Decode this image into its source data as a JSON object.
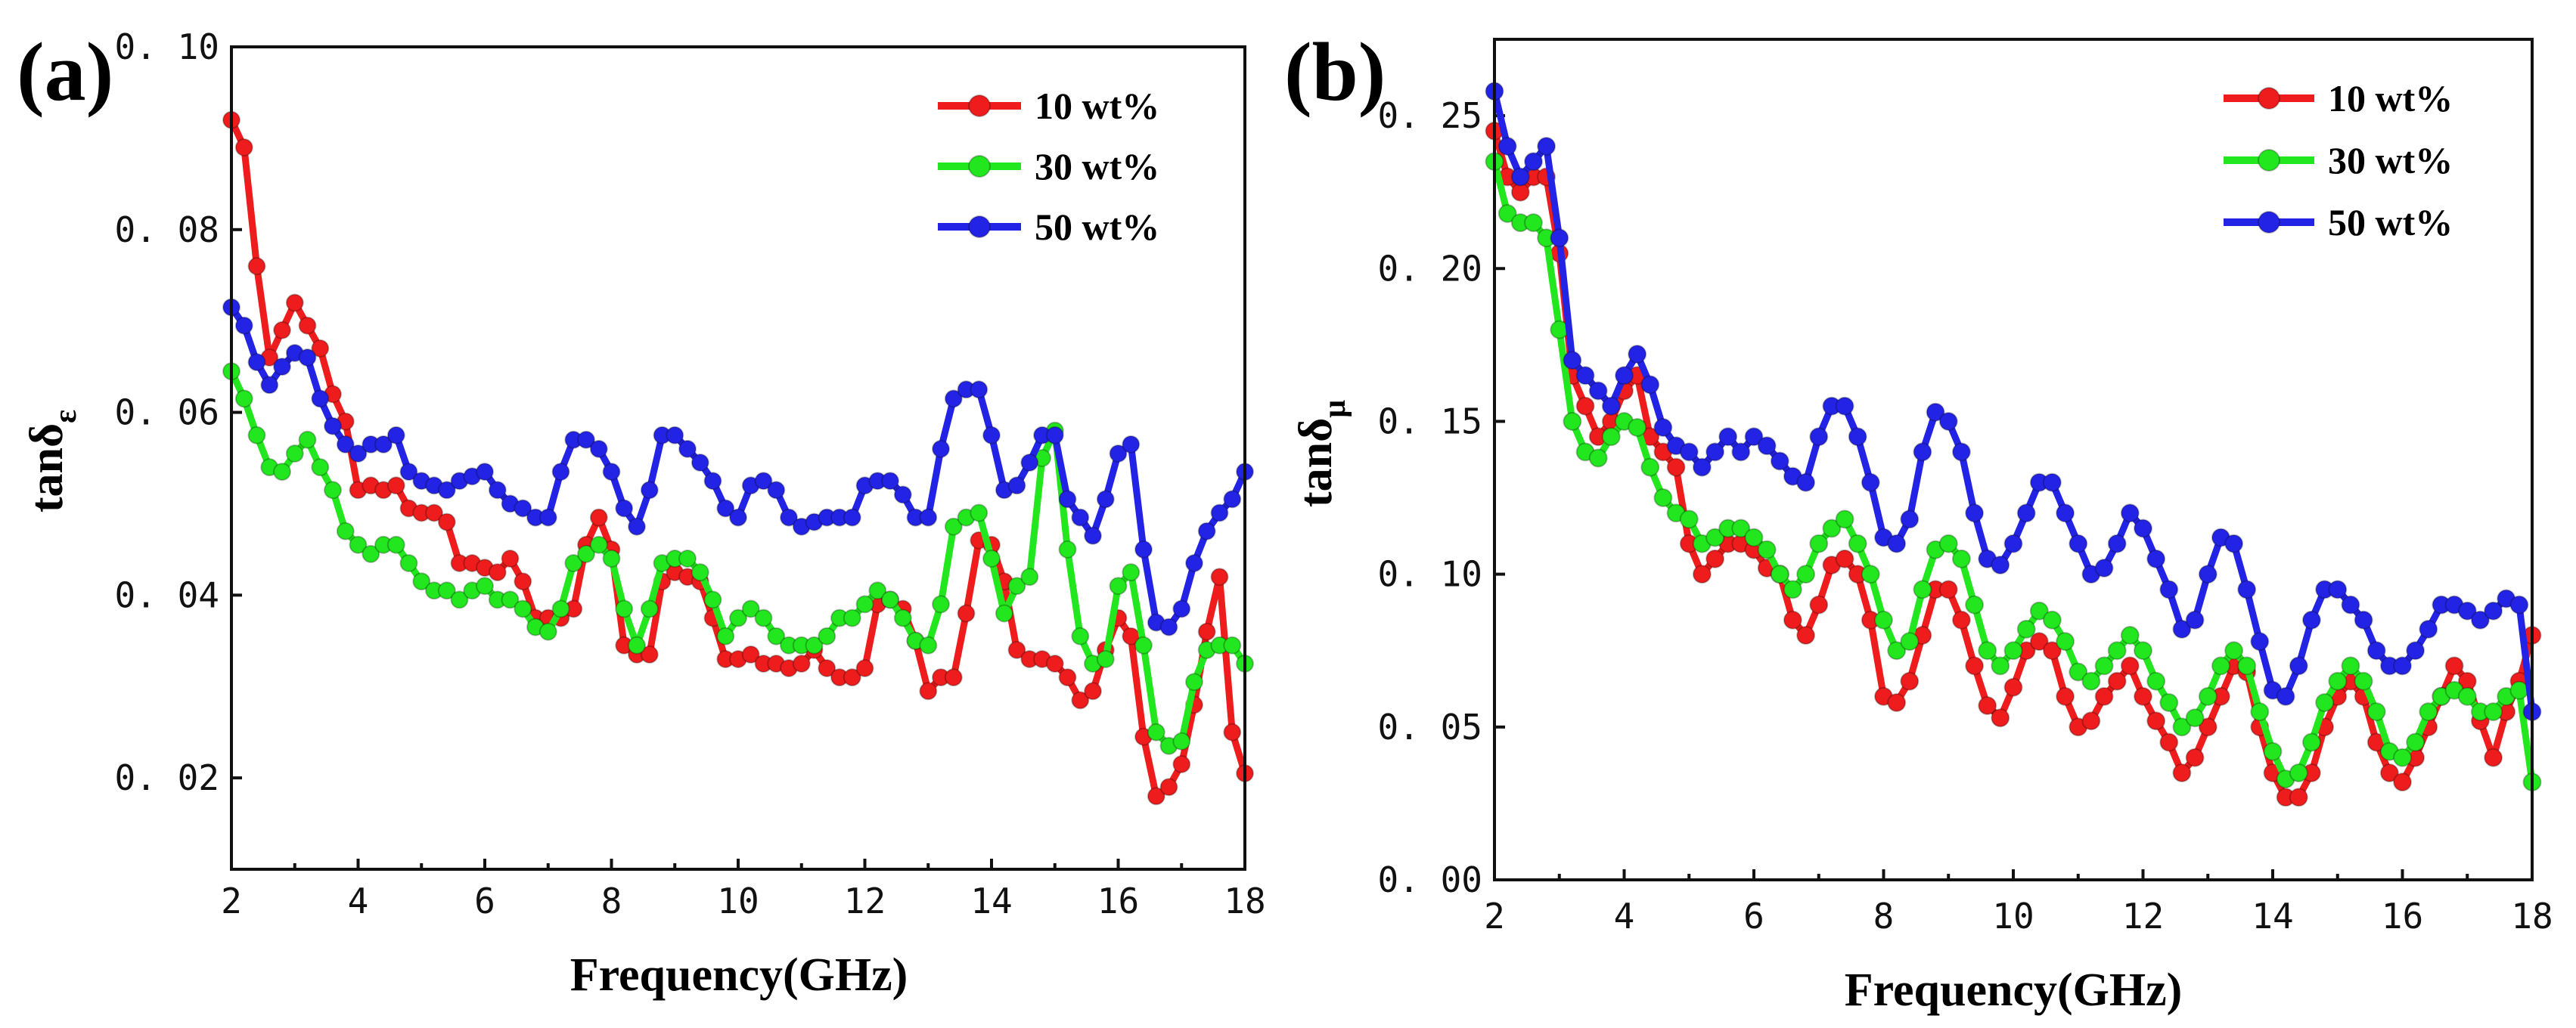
{
  "chart_data": [
    {
      "type": "line",
      "panel_label": "(a)",
      "title": "",
      "xlabel": "Frequency(GHz)",
      "ylabel_main": "tanδ",
      "ylabel_sub": "ε",
      "xlim": [
        2,
        18
      ],
      "ylim": [
        0.01,
        0.1
      ],
      "x_ticks": [
        "2",
        "4",
        "6",
        "8",
        "10",
        "12",
        "14",
        "16",
        "18"
      ],
      "y_ticks": [
        "0. 02",
        "0. 04",
        "0. 06",
        "0. 08",
        "0. 10"
      ],
      "legend_position": "top-right",
      "x": [
        2.0,
        2.2,
        2.4,
        2.6,
        2.8,
        3.0,
        3.2,
        3.4,
        3.6,
        3.8,
        4.0,
        4.2,
        4.4,
        4.6,
        4.8,
        5.0,
        5.2,
        5.4,
        5.6,
        5.8,
        6.0,
        6.2,
        6.4,
        6.6,
        6.8,
        7.0,
        7.2,
        7.4,
        7.6,
        7.8,
        8.0,
        8.2,
        8.4,
        8.6,
        8.8,
        9.0,
        9.2,
        9.4,
        9.6,
        9.8,
        10.0,
        10.2,
        10.4,
        10.6,
        10.8,
        11.0,
        11.2,
        11.4,
        11.6,
        11.8,
        12.0,
        12.2,
        12.4,
        12.6,
        12.8,
        13.0,
        13.2,
        13.4,
        13.6,
        13.8,
        14.0,
        14.2,
        14.4,
        14.6,
        14.8,
        15.0,
        15.2,
        15.4,
        15.6,
        15.8,
        16.0,
        16.2,
        16.4,
        16.6,
        16.8,
        17.0,
        17.2,
        17.4,
        17.6,
        17.8,
        18.0
      ],
      "series": [
        {
          "name": "10 wt%",
          "color": "#ee1c1c",
          "values": [
            0.092,
            0.089,
            0.076,
            0.066,
            0.069,
            0.072,
            0.0695,
            0.067,
            0.062,
            0.059,
            0.0515,
            0.052,
            0.0515,
            0.052,
            0.0495,
            0.049,
            0.049,
            0.048,
            0.0435,
            0.0435,
            0.043,
            0.0425,
            0.044,
            0.0415,
            0.0375,
            0.0375,
            0.0375,
            0.0385,
            0.0455,
            0.0485,
            0.045,
            0.0345,
            0.0335,
            0.0335,
            0.0415,
            0.0425,
            0.042,
            0.0415,
            0.0375,
            0.033,
            0.033,
            0.0335,
            0.0325,
            0.0325,
            0.032,
            0.0325,
            0.034,
            0.032,
            0.031,
            0.031,
            0.032,
            0.039,
            0.0395,
            0.0385,
            0.035,
            0.0295,
            0.031,
            0.031,
            0.038,
            0.046,
            0.0455,
            0.0415,
            0.034,
            0.033,
            0.033,
            0.0325,
            0.031,
            0.0285,
            0.0295,
            0.034,
            0.0375,
            0.0355,
            0.0245,
            0.018,
            0.019,
            0.0215,
            0.028,
            0.036,
            0.042,
            0.025,
            0.0205
          ]
        },
        {
          "name": "30 wt%",
          "color": "#22e61e",
          "values": [
            0.0645,
            0.0615,
            0.0575,
            0.054,
            0.0535,
            0.0555,
            0.057,
            0.054,
            0.0515,
            0.047,
            0.0455,
            0.0445,
            0.0455,
            0.0455,
            0.0435,
            0.0415,
            0.0405,
            0.0405,
            0.0395,
            0.0405,
            0.041,
            0.0395,
            0.0395,
            0.0385,
            0.0365,
            0.036,
            0.0385,
            0.0435,
            0.0445,
            0.0455,
            0.044,
            0.0385,
            0.0345,
            0.0385,
            0.0435,
            0.044,
            0.044,
            0.0425,
            0.0395,
            0.0355,
            0.0375,
            0.0385,
            0.0375,
            0.0355,
            0.0345,
            0.0345,
            0.0345,
            0.0355,
            0.0375,
            0.0375,
            0.039,
            0.0405,
            0.0395,
            0.0375,
            0.035,
            0.0345,
            0.039,
            0.0475,
            0.0485,
            0.049,
            0.044,
            0.038,
            0.041,
            0.042,
            0.055,
            0.058,
            0.045,
            0.0355,
            0.0325,
            0.033,
            0.041,
            0.0425,
            0.0345,
            0.025,
            0.0235,
            0.024,
            0.0305,
            0.034,
            0.0345,
            0.0345,
            0.0325
          ]
        },
        {
          "name": "50 wt%",
          "color": "#2323e6",
          "values": [
            0.0715,
            0.0695,
            0.0655,
            0.063,
            0.065,
            0.0665,
            0.066,
            0.0615,
            0.0585,
            0.0565,
            0.0555,
            0.0565,
            0.0565,
            0.0575,
            0.0535,
            0.0525,
            0.052,
            0.0515,
            0.0525,
            0.053,
            0.0535,
            0.0515,
            0.05,
            0.0495,
            0.0485,
            0.0485,
            0.0535,
            0.057,
            0.057,
            0.056,
            0.0535,
            0.0495,
            0.0475,
            0.0515,
            0.0575,
            0.0575,
            0.056,
            0.0545,
            0.0525,
            0.0495,
            0.0485,
            0.052,
            0.0525,
            0.0515,
            0.0485,
            0.0475,
            0.048,
            0.0485,
            0.0485,
            0.0485,
            0.052,
            0.0525,
            0.0525,
            0.051,
            0.0485,
            0.0485,
            0.056,
            0.0615,
            0.0625,
            0.0625,
            0.0575,
            0.0515,
            0.052,
            0.0545,
            0.0575,
            0.0575,
            0.0505,
            0.0485,
            0.0465,
            0.0505,
            0.0555,
            0.0565,
            0.045,
            0.037,
            0.0365,
            0.0385,
            0.0435,
            0.047,
            0.049,
            0.0505,
            0.0535
          ]
        }
      ]
    },
    {
      "type": "line",
      "panel_label": "(b)",
      "title": "",
      "xlabel": "Frequency(GHz)",
      "ylabel_main": "tanδ",
      "ylabel_sub": "μ",
      "xlim": [
        2,
        18
      ],
      "ylim": [
        0,
        0.275
      ],
      "x_ticks": [
        "2",
        "4",
        "6",
        "8",
        "10",
        "12",
        "14",
        "16",
        "18"
      ],
      "y_ticks": [
        "0. 00",
        "0. 05",
        "0. 10",
        "0. 15",
        "0. 20",
        "0. 25"
      ],
      "legend_position": "top-right",
      "x": [
        2.0,
        2.2,
        2.4,
        2.6,
        2.8,
        3.0,
        3.2,
        3.4,
        3.6,
        3.8,
        4.0,
        4.2,
        4.4,
        4.6,
        4.8,
        5.0,
        5.2,
        5.4,
        5.6,
        5.8,
        6.0,
        6.2,
        6.4,
        6.6,
        6.8,
        7.0,
        7.2,
        7.4,
        7.6,
        7.8,
        8.0,
        8.2,
        8.4,
        8.6,
        8.8,
        9.0,
        9.2,
        9.4,
        9.6,
        9.8,
        10.0,
        10.2,
        10.4,
        10.6,
        10.8,
        11.0,
        11.2,
        11.4,
        11.6,
        11.8,
        12.0,
        12.2,
        12.4,
        12.6,
        12.8,
        13.0,
        13.2,
        13.4,
        13.6,
        13.8,
        14.0,
        14.2,
        14.4,
        14.6,
        14.8,
        15.0,
        15.2,
        15.4,
        15.6,
        15.8,
        16.0,
        16.2,
        16.4,
        16.6,
        16.8,
        17.0,
        17.2,
        17.4,
        17.6,
        17.8,
        18.0
      ],
      "series": [
        {
          "name": "10 wt%",
          "color": "#ee1c1c",
          "values": [
            0.245,
            0.23,
            0.225,
            0.23,
            0.23,
            0.205,
            0.165,
            0.155,
            0.145,
            0.15,
            0.16,
            0.165,
            0.145,
            0.14,
            0.135,
            0.11,
            0.1,
            0.105,
            0.11,
            0.11,
            0.108,
            0.102,
            0.1,
            0.085,
            0.08,
            0.09,
            0.103,
            0.105,
            0.1,
            0.085,
            0.06,
            0.058,
            0.065,
            0.08,
            0.095,
            0.095,
            0.085,
            0.07,
            0.057,
            0.053,
            0.063,
            0.075,
            0.078,
            0.075,
            0.06,
            0.05,
            0.052,
            0.06,
            0.065,
            0.07,
            0.06,
            0.052,
            0.045,
            0.035,
            0.04,
            0.05,
            0.06,
            0.07,
            0.068,
            0.05,
            0.035,
            0.027,
            0.027,
            0.035,
            0.05,
            0.06,
            0.065,
            0.06,
            0.045,
            0.035,
            0.032,
            0.04,
            0.05,
            0.06,
            0.07,
            0.065,
            0.052,
            0.04,
            0.055,
            0.065,
            0.08
          ]
        },
        {
          "name": "30 wt%",
          "color": "#22e61e",
          "values": [
            0.235,
            0.218,
            0.215,
            0.215,
            0.21,
            0.18,
            0.15,
            0.14,
            0.138,
            0.145,
            0.15,
            0.148,
            0.135,
            0.125,
            0.12,
            0.118,
            0.11,
            0.112,
            0.115,
            0.115,
            0.112,
            0.108,
            0.1,
            0.095,
            0.1,
            0.11,
            0.115,
            0.118,
            0.11,
            0.1,
            0.085,
            0.075,
            0.078,
            0.095,
            0.108,
            0.11,
            0.105,
            0.09,
            0.075,
            0.07,
            0.075,
            0.082,
            0.088,
            0.085,
            0.078,
            0.068,
            0.065,
            0.07,
            0.075,
            0.08,
            0.075,
            0.065,
            0.058,
            0.05,
            0.053,
            0.06,
            0.07,
            0.075,
            0.07,
            0.055,
            0.042,
            0.033,
            0.035,
            0.045,
            0.058,
            0.065,
            0.07,
            0.065,
            0.055,
            0.042,
            0.04,
            0.045,
            0.055,
            0.06,
            0.062,
            0.06,
            0.055,
            0.055,
            0.06,
            0.062,
            0.032
          ]
        },
        {
          "name": "50 wt%",
          "color": "#2323e6",
          "values": [
            0.258,
            0.24,
            0.23,
            0.235,
            0.24,
            0.21,
            0.17,
            0.165,
            0.16,
            0.155,
            0.165,
            0.172,
            0.162,
            0.148,
            0.142,
            0.14,
            0.135,
            0.14,
            0.145,
            0.14,
            0.145,
            0.142,
            0.137,
            0.132,
            0.13,
            0.145,
            0.155,
            0.155,
            0.145,
            0.13,
            0.112,
            0.11,
            0.118,
            0.14,
            0.153,
            0.15,
            0.14,
            0.12,
            0.105,
            0.103,
            0.11,
            0.12,
            0.13,
            0.13,
            0.12,
            0.11,
            0.1,
            0.102,
            0.11,
            0.12,
            0.115,
            0.105,
            0.095,
            0.082,
            0.085,
            0.1,
            0.112,
            0.11,
            0.095,
            0.078,
            0.062,
            0.06,
            0.07,
            0.085,
            0.095,
            0.095,
            0.09,
            0.085,
            0.075,
            0.07,
            0.07,
            0.075,
            0.082,
            0.09,
            0.09,
            0.088,
            0.085,
            0.088,
            0.092,
            0.09,
            0.055
          ]
        }
      ]
    }
  ]
}
